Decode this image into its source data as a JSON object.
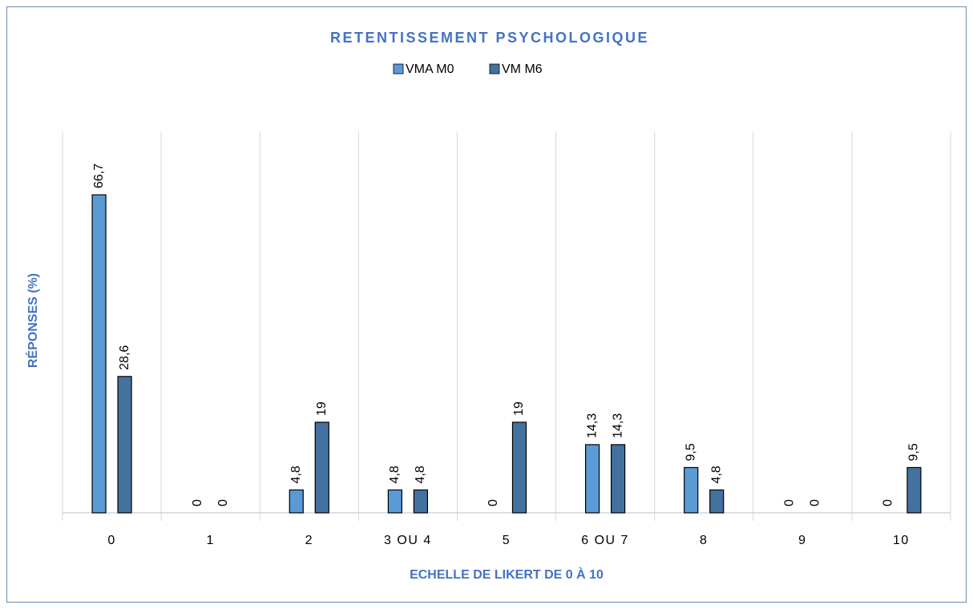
{
  "chart_data": {
    "type": "bar",
    "title": "RETENTISSEMENT PSYCHOLOGIQUE",
    "xlabel": "ECHELLE DE LIKERT  DE 0 À 10",
    "ylabel": "RÉPONSES (%)",
    "categories": [
      "0",
      "1",
      "2",
      "3 OU 4",
      "5",
      "6 OU 7",
      "8",
      "9",
      "10"
    ],
    "series": [
      {
        "name": "VMA M0",
        "color": "#5b9bd5",
        "values": [
          66.7,
          0,
          4.8,
          4.8,
          0,
          14.3,
          9.5,
          0,
          0
        ],
        "value_labels": [
          "66,7",
          "0",
          "4,8",
          "4,8",
          "0",
          "14,3",
          "9,5",
          "0",
          "0"
        ]
      },
      {
        "name": "VM M6",
        "color": "#44729f",
        "values": [
          28.6,
          0,
          19,
          4.8,
          19,
          14.3,
          4.8,
          0,
          9.5
        ],
        "value_labels": [
          "28,6",
          "0",
          "19",
          "4,8",
          "19",
          "14,3",
          "4,8",
          "0",
          "9,5"
        ]
      }
    ],
    "ylim": [
      0,
      80
    ],
    "legend": "top"
  }
}
